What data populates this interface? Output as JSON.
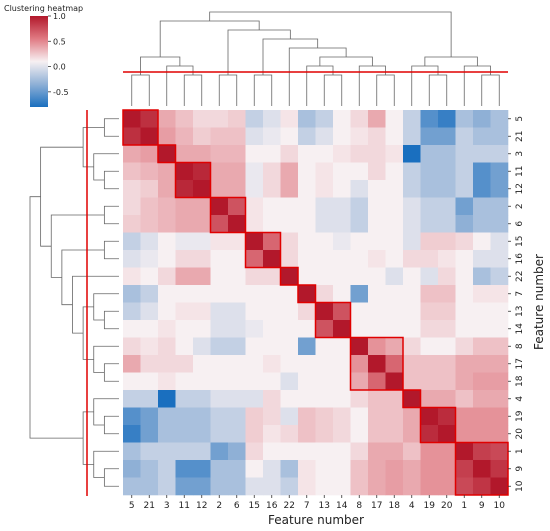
{
  "chart_data": {
    "type": "heatmap",
    "title": "",
    "colorbar_label": "Clustering heatmap",
    "colorbar_ticks": [
      "1.0",
      "0.5",
      "0.0",
      "-0.5"
    ],
    "colorbar_tick_values": [
      1.0,
      0.5,
      0.0,
      -0.5
    ],
    "vmin": -0.8,
    "vmax": 1.0,
    "xlabel": "Feature number",
    "ylabel": "Feature number",
    "labels": [
      "5",
      "21",
      "3",
      "11",
      "12",
      "2",
      "6",
      "15",
      "16",
      "22",
      "7",
      "13",
      "14",
      "8",
      "17",
      "18",
      "4",
      "19",
      "20",
      "1",
      "9",
      "10"
    ],
    "clusters": [
      [
        0,
        1
      ],
      [
        2,
        2
      ],
      [
        3,
        4
      ],
      [
        5,
        6
      ],
      [
        7,
        8
      ],
      [
        9,
        9
      ],
      [
        10,
        10
      ],
      [
        11,
        12
      ],
      [
        13,
        15
      ],
      [
        16,
        16
      ],
      [
        17,
        18
      ],
      [
        19,
        21
      ]
    ],
    "values": [
      [
        1.0,
        0.88,
        0.3,
        0.2,
        0.1,
        0.1,
        0.15,
        -0.2,
        -0.1,
        0.05,
        -0.3,
        -0.2,
        0.0,
        0.1,
        0.3,
        0.0,
        -0.2,
        -0.6,
        -0.7,
        -0.3,
        -0.4,
        -0.3
      ],
      [
        0.88,
        1.0,
        0.35,
        0.25,
        0.15,
        0.2,
        0.2,
        -0.1,
        -0.05,
        0.0,
        -0.2,
        -0.1,
        0.0,
        0.05,
        0.1,
        0.0,
        -0.2,
        -0.5,
        -0.5,
        -0.2,
        -0.3,
        -0.3
      ],
      [
        0.3,
        0.35,
        1.0,
        0.3,
        0.3,
        0.25,
        0.25,
        0.0,
        0.0,
        0.1,
        0.0,
        0.0,
        0.05,
        0.1,
        0.1,
        0.05,
        -0.8,
        -0.3,
        -0.3,
        -0.2,
        -0.2,
        -0.2
      ],
      [
        0.2,
        0.25,
        0.3,
        1.0,
        0.92,
        0.3,
        0.3,
        -0.05,
        0.1,
        0.3,
        0.0,
        0.05,
        0.0,
        0.0,
        0.1,
        0.0,
        -0.2,
        -0.3,
        -0.3,
        -0.2,
        -0.6,
        -0.5
      ],
      [
        0.1,
        0.15,
        0.3,
        0.92,
        1.0,
        0.3,
        0.3,
        -0.05,
        0.1,
        0.3,
        0.0,
        0.05,
        0.0,
        -0.1,
        0.0,
        0.0,
        -0.2,
        -0.3,
        -0.3,
        -0.2,
        -0.6,
        -0.5
      ],
      [
        0.1,
        0.2,
        0.25,
        0.3,
        0.3,
        1.0,
        0.7,
        0.05,
        0.0,
        0.0,
        0.0,
        -0.1,
        -0.1,
        -0.2,
        0.0,
        0.0,
        -0.1,
        -0.2,
        -0.2,
        -0.5,
        -0.3,
        -0.3
      ],
      [
        0.15,
        0.2,
        0.25,
        0.3,
        0.3,
        0.7,
        1.0,
        0.05,
        0.0,
        0.0,
        0.0,
        -0.1,
        -0.1,
        -0.2,
        0.0,
        0.0,
        -0.1,
        -0.2,
        -0.2,
        -0.4,
        -0.3,
        -0.3
      ],
      [
        -0.2,
        -0.1,
        0.0,
        -0.05,
        -0.05,
        0.05,
        0.05,
        1.0,
        0.6,
        0.1,
        0.0,
        0.0,
        -0.05,
        0.0,
        0.0,
        0.0,
        -0.1,
        0.15,
        0.15,
        0.1,
        0.0,
        -0.1
      ],
      [
        -0.1,
        -0.05,
        0.0,
        0.1,
        0.1,
        0.0,
        0.0,
        0.6,
        1.0,
        0.1,
        0.0,
        0.0,
        0.0,
        0.0,
        0.05,
        0.0,
        0.1,
        0.1,
        0.05,
        0.0,
        -0.1,
        -0.1
      ],
      [
        0.05,
        0.0,
        0.1,
        0.3,
        0.3,
        0.0,
        0.0,
        0.1,
        0.1,
        1.0,
        0.0,
        0.0,
        0.0,
        0.0,
        0.0,
        -0.1,
        0.0,
        -0.1,
        0.1,
        0.0,
        -0.3,
        -0.2
      ],
      [
        -0.3,
        -0.2,
        0.0,
        0.0,
        0.0,
        0.0,
        0.0,
        0.0,
        0.0,
        0.0,
        1.0,
        0.1,
        0.0,
        -0.5,
        0.0,
        0.0,
        0.0,
        0.2,
        0.2,
        0.0,
        0.05,
        0.05
      ],
      [
        -0.2,
        -0.1,
        0.0,
        0.05,
        0.05,
        -0.1,
        -0.1,
        0.0,
        0.0,
        0.0,
        0.1,
        1.0,
        0.7,
        0.0,
        0.0,
        0.0,
        0.0,
        0.15,
        0.15,
        0.0,
        0.0,
        0.0
      ],
      [
        0.0,
        0.0,
        0.05,
        0.0,
        0.0,
        -0.1,
        -0.1,
        -0.05,
        0.0,
        0.0,
        0.0,
        0.7,
        1.0,
        0.0,
        0.0,
        0.0,
        0.0,
        0.1,
        0.1,
        0.0,
        0.0,
        0.0
      ],
      [
        0.1,
        0.05,
        0.1,
        0.0,
        -0.1,
        -0.2,
        -0.2,
        0.0,
        0.0,
        0.0,
        -0.5,
        0.0,
        0.0,
        1.0,
        0.4,
        0.3,
        0.1,
        0.0,
        0.0,
        0.1,
        0.2,
        0.2
      ],
      [
        0.3,
        0.1,
        0.1,
        0.1,
        0.0,
        0.0,
        0.0,
        0.0,
        0.05,
        0.0,
        0.0,
        0.0,
        0.0,
        0.4,
        1.0,
        0.6,
        0.2,
        0.2,
        0.2,
        0.3,
        0.3,
        0.3
      ],
      [
        0.0,
        0.0,
        0.05,
        0.0,
        0.0,
        0.0,
        0.0,
        0.0,
        0.0,
        -0.1,
        0.0,
        0.0,
        0.0,
        0.3,
        0.6,
        1.0,
        0.2,
        0.2,
        0.2,
        0.3,
        0.35,
        0.35
      ],
      [
        -0.2,
        -0.2,
        -0.8,
        -0.2,
        -0.2,
        -0.1,
        -0.1,
        -0.1,
        0.1,
        0.0,
        0.0,
        0.0,
        0.0,
        0.1,
        0.2,
        0.2,
        1.0,
        0.3,
        0.3,
        0.2,
        0.3,
        0.3
      ],
      [
        -0.6,
        -0.5,
        -0.3,
        -0.3,
        -0.3,
        -0.2,
        -0.2,
        0.15,
        0.1,
        -0.1,
        0.2,
        0.15,
        0.1,
        0.0,
        0.2,
        0.2,
        0.3,
        1.0,
        0.9,
        0.4,
        0.4,
        0.4
      ],
      [
        -0.7,
        -0.5,
        -0.3,
        -0.3,
        -0.3,
        -0.2,
        -0.2,
        0.15,
        0.05,
        0.1,
        0.2,
        0.15,
        0.1,
        0.0,
        0.2,
        0.2,
        0.3,
        0.9,
        1.0,
        0.4,
        0.4,
        0.4
      ],
      [
        -0.3,
        -0.2,
        -0.2,
        -0.2,
        -0.2,
        -0.5,
        -0.4,
        0.1,
        0.0,
        0.0,
        0.0,
        0.0,
        0.0,
        0.1,
        0.3,
        0.3,
        0.2,
        0.4,
        0.4,
        1.0,
        0.8,
        0.75
      ],
      [
        -0.4,
        -0.3,
        -0.2,
        -0.6,
        -0.6,
        -0.3,
        -0.3,
        0.0,
        -0.1,
        -0.3,
        0.05,
        0.0,
        0.0,
        0.2,
        0.3,
        0.35,
        0.3,
        0.4,
        0.4,
        0.8,
        1.0,
        0.85
      ],
      [
        -0.3,
        -0.3,
        -0.2,
        -0.5,
        -0.5,
        -0.3,
        -0.3,
        -0.1,
        -0.1,
        -0.2,
        0.05,
        0.0,
        0.0,
        0.2,
        0.3,
        0.35,
        0.3,
        0.4,
        0.4,
        0.75,
        0.85,
        1.0
      ]
    ]
  }
}
